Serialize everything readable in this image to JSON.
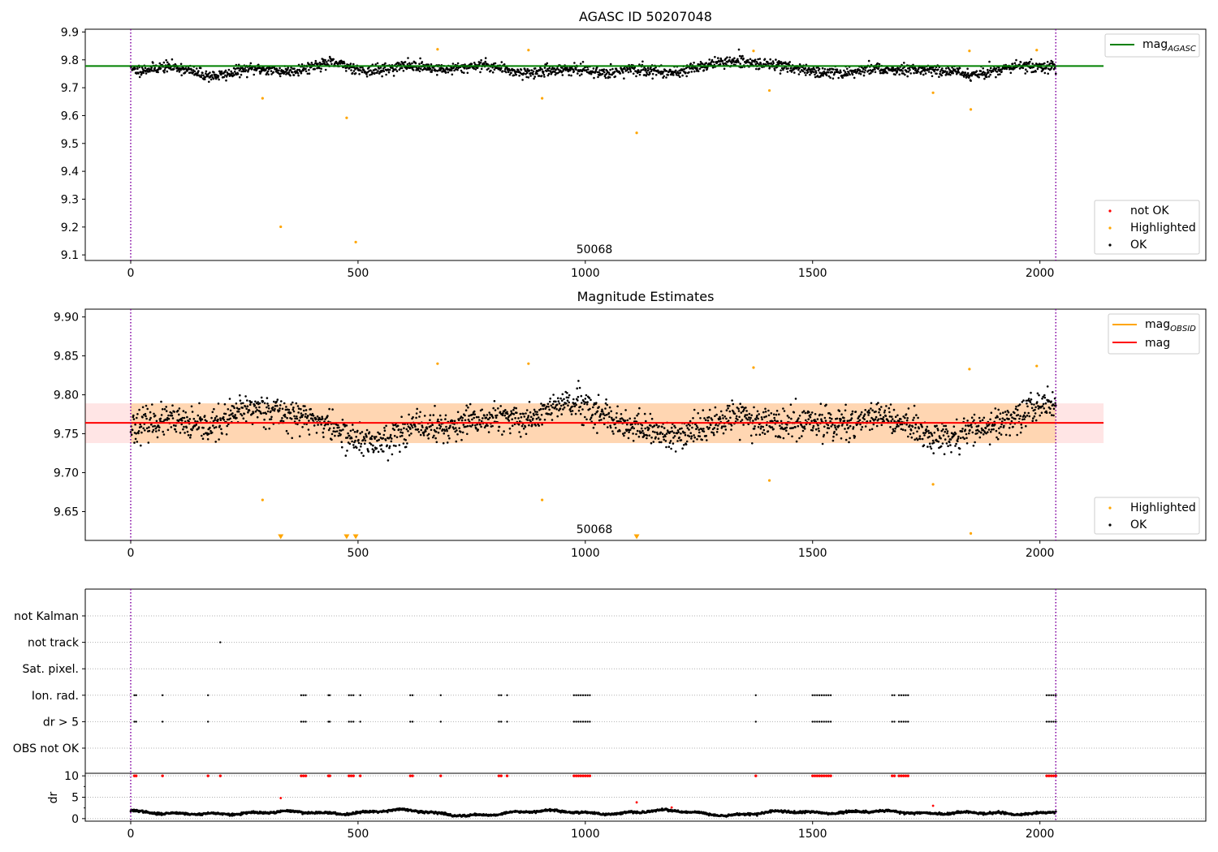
{
  "figure": {
    "width": 1500,
    "height": 1050
  },
  "chart_data": [
    {
      "id": "agasc",
      "type": "scatter",
      "title": "AGASC ID 50207048",
      "xlim": [
        -100,
        2365
      ],
      "ylim": [
        9.08,
        9.91
      ],
      "xticks": [
        0,
        500,
        1000,
        1500,
        2000
      ],
      "yticks": [
        9.1,
        9.2,
        9.3,
        9.4,
        9.5,
        9.6,
        9.7,
        9.8,
        9.9
      ],
      "ytick_decimals": 1,
      "obsid_label": "50068",
      "obsid_label_x": 1015,
      "obs_bounds": [
        0,
        2035
      ],
      "hline": {
        "label": "mag",
        "label_sub": "AGASC",
        "y": 9.778,
        "x0": -100,
        "x1": 2140,
        "color": "#008000"
      },
      "band": null,
      "base_y": 9.768,
      "noise": 0.022,
      "wave_amp": 0.018,
      "seed": 11,
      "highlighted": [
        {
          "x": 290,
          "y": 9.662
        },
        {
          "x": 330,
          "y": 9.201
        },
        {
          "x": 475,
          "y": 9.592
        },
        {
          "x": 495,
          "y": 9.146
        },
        {
          "x": 675,
          "y": 9.838
        },
        {
          "x": 875,
          "y": 9.835
        },
        {
          "x": 905,
          "y": 9.662
        },
        {
          "x": 1113,
          "y": 9.538
        },
        {
          "x": 1370,
          "y": 9.832
        },
        {
          "x": 1405,
          "y": 9.69
        },
        {
          "x": 1765,
          "y": 9.682
        },
        {
          "x": 1845,
          "y": 9.832
        },
        {
          "x": 1848,
          "y": 9.622
        },
        {
          "x": 1993,
          "y": 9.835
        }
      ],
      "not_ok": [],
      "legends": [
        {
          "position": "top-right",
          "items": [
            {
              "kind": "line",
              "label": "mag",
              "sub": "AGASC",
              "color": "#008000"
            }
          ]
        },
        {
          "position": "bottom-right",
          "items": [
            {
              "kind": "dot",
              "label": "not OK",
              "color": "#ff0000"
            },
            {
              "kind": "dot",
              "label": "Highlighted",
              "color": "#ffa500"
            },
            {
              "kind": "dot",
              "label": "OK",
              "color": "#000000"
            }
          ]
        }
      ]
    },
    {
      "id": "estimates",
      "type": "scatter",
      "title": "Magnitude Estimates",
      "xlim": [
        -100,
        2365
      ],
      "ylim": [
        9.613,
        9.91
      ],
      "xticks": [
        0,
        500,
        1000,
        1500,
        2000
      ],
      "yticks": [
        9.65,
        9.7,
        9.75,
        9.8,
        9.85,
        9.9
      ],
      "ytick_decimals": 2,
      "obsid_label": "50068",
      "obsid_label_x": 1015,
      "obs_bounds": [
        0,
        2035
      ],
      "hline": {
        "label": "mag",
        "label_sub": "",
        "y": 9.764,
        "x0": -100,
        "x1": 2140,
        "color": "#ff0000"
      },
      "obs_band": {
        "y0": 9.738,
        "y1": 9.789,
        "x0": 0,
        "x1": 2035,
        "color": "#ffa500",
        "alpha": 0.22
      },
      "mag_band": {
        "y0": 9.738,
        "y1": 9.789,
        "x0": -100,
        "x1": 2140,
        "color": "#ff0000",
        "alpha": 0.1
      },
      "base_y": 9.764,
      "noise": 0.022,
      "wave_amp": 0.02,
      "seed": 23,
      "highlighted": [
        {
          "x": 290,
          "y": 9.665
        },
        {
          "x": 675,
          "y": 9.84
        },
        {
          "x": 875,
          "y": 9.84
        },
        {
          "x": 905,
          "y": 9.665
        },
        {
          "x": 1370,
          "y": 9.835
        },
        {
          "x": 1405,
          "y": 9.69
        },
        {
          "x": 1765,
          "y": 9.685
        },
        {
          "x": 1845,
          "y": 9.833
        },
        {
          "x": 1848,
          "y": 9.622
        },
        {
          "x": 1993,
          "y": 9.837
        }
      ],
      "below_limit": [
        330,
        475,
        495,
        1113
      ],
      "legends": [
        {
          "position": "top-right",
          "items": [
            {
              "kind": "line",
              "label": "mag",
              "sub": "OBSID",
              "color": "#ffa500"
            },
            {
              "kind": "line",
              "label": "mag",
              "sub": "",
              "color": "#ff0000"
            }
          ]
        },
        {
          "position": "bottom-right",
          "items": [
            {
              "kind": "dot",
              "label": "Highlighted",
              "color": "#ffa500"
            },
            {
              "kind": "dot",
              "label": "OK",
              "color": "#000000"
            }
          ]
        }
      ]
    },
    {
      "id": "flags",
      "type": "scatter",
      "xlim": [
        -100,
        2365
      ],
      "categories": [
        "OBS not OK",
        "dr > 5",
        "Ion. rad.",
        "Sat. pixel.",
        "not track",
        "not Kalman"
      ],
      "obs_bounds": [
        0,
        2035
      ],
      "flag_points": {
        "not track": [
          197
        ],
        "Ion. rad.": [
          8,
          12,
          70,
          170,
          375,
          380,
          385,
          435,
          438,
          480,
          485,
          490,
          505,
          615,
          620,
          682,
          810,
          815,
          828,
          975,
          980,
          985,
          990,
          995,
          1000,
          1005,
          1010,
          1375,
          1500,
          1505,
          1510,
          1515,
          1520,
          1525,
          1530,
          1535,
          1540,
          1675,
          1680,
          1690,
          1695,
          1700,
          1705,
          1710,
          2015,
          2020,
          2025,
          2030,
          2035
        ],
        "dr > 5": [
          8,
          12,
          70,
          170,
          375,
          380,
          385,
          435,
          438,
          480,
          485,
          490,
          505,
          615,
          620,
          682,
          810,
          815,
          828,
          975,
          980,
          985,
          990,
          995,
          1000,
          1005,
          1010,
          1375,
          1500,
          1505,
          1510,
          1515,
          1520,
          1525,
          1530,
          1535,
          1540,
          1675,
          1680,
          1690,
          1695,
          1700,
          1705,
          1710,
          2015,
          2020,
          2025,
          2030,
          2035
        ]
      }
    },
    {
      "id": "dr",
      "type": "scatter",
      "ylabel": "dr",
      "xlim": [
        -100,
        2365
      ],
      "ylim": [
        -0.6,
        10.6
      ],
      "xticks": [
        0,
        500,
        1000,
        1500,
        2000
      ],
      "yticks": [
        0,
        5,
        10
      ],
      "obs_bounds": [
        0,
        2035
      ],
      "clip_value": 10,
      "base_y": 1.4,
      "wave_amp": 0.7,
      "seed": 37,
      "dr_outliers": [
        {
          "x": 330,
          "y": 4.8
        },
        {
          "x": 1113,
          "y": 3.8
        },
        {
          "x": 1190,
          "y": 2.6
        },
        {
          "x": 1765,
          "y": 3.0
        }
      ],
      "dr_clipped": [
        8,
        12,
        70,
        170,
        197,
        375,
        380,
        385,
        435,
        438,
        480,
        485,
        490,
        505,
        615,
        620,
        682,
        810,
        815,
        828,
        975,
        980,
        985,
        990,
        995,
        1000,
        1005,
        1010,
        1375,
        1500,
        1505,
        1510,
        1515,
        1520,
        1525,
        1530,
        1535,
        1540,
        1675,
        1680,
        1690,
        1695,
        1700,
        1705,
        1710,
        2015,
        2020,
        2025,
        2030,
        2035
      ]
    }
  ]
}
